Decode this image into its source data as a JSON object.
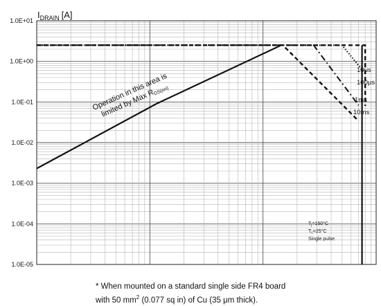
{
  "chart_data": {
    "type": "line",
    "ylabel": "I",
    "ylabel_sub": "DRAIN",
    "ylabel_unit": "[A]",
    "y_scale": "log",
    "ylim": [
      1e-05,
      10
    ],
    "y_tick_labels": [
      "1.0E+01",
      "1.0E+00",
      "1.0E-01",
      "1.0E-02",
      "1.0E-03",
      "1.0E-04",
      "1.0E-05"
    ],
    "x_scale": "log",
    "xlim": [
      0.1,
      100
    ],
    "grid": true,
    "rds_limit": {
      "text": "Operation in this area is",
      "text2_prefix": "limited by Max R",
      "text2_sub": "DS(on)",
      "x": [
        0.1,
        1.14,
        14.5
      ],
      "y": [
        0.0023,
        0.09,
        2.5
      ]
    },
    "series": [
      {
        "name": "10μs",
        "style": "dotted",
        "x": [
          0.1,
          50,
          80
        ],
        "y": [
          2.5,
          2.5,
          0.5
        ]
      },
      {
        "name": "100μs",
        "style": "dashdot",
        "x": [
          0.1,
          28,
          70
        ],
        "y": [
          2.5,
          2.5,
          0.083
        ]
      },
      {
        "name": "1ms",
        "style": "dashed",
        "x": [
          0.1,
          80,
          80
        ],
        "y": [
          2.5,
          2.5,
          0.08
        ]
      },
      {
        "name": "10ms",
        "style": "dashed",
        "x": [
          0.1,
          15,
          70
        ],
        "y": [
          2.5,
          2.5,
          0.034
        ]
      },
      {
        "name": "",
        "style": "solid",
        "x": [
          75,
          75
        ],
        "y": [
          2.5,
          1e-05
        ]
      }
    ],
    "conditions": [
      "T",
      "j",
      "=150°C",
      "T",
      "c",
      "=25°C",
      "Single pulse"
    ]
  },
  "footnote": {
    "line1": "* When mounted on a standard single side FR4 board",
    "line2_a": "with 50 mm",
    "line2_sup": "2",
    "line2_b": " (0.077 sq in) of Cu (35 ",
    "line2_mu": "μ",
    "line2_c": "m thick)."
  }
}
